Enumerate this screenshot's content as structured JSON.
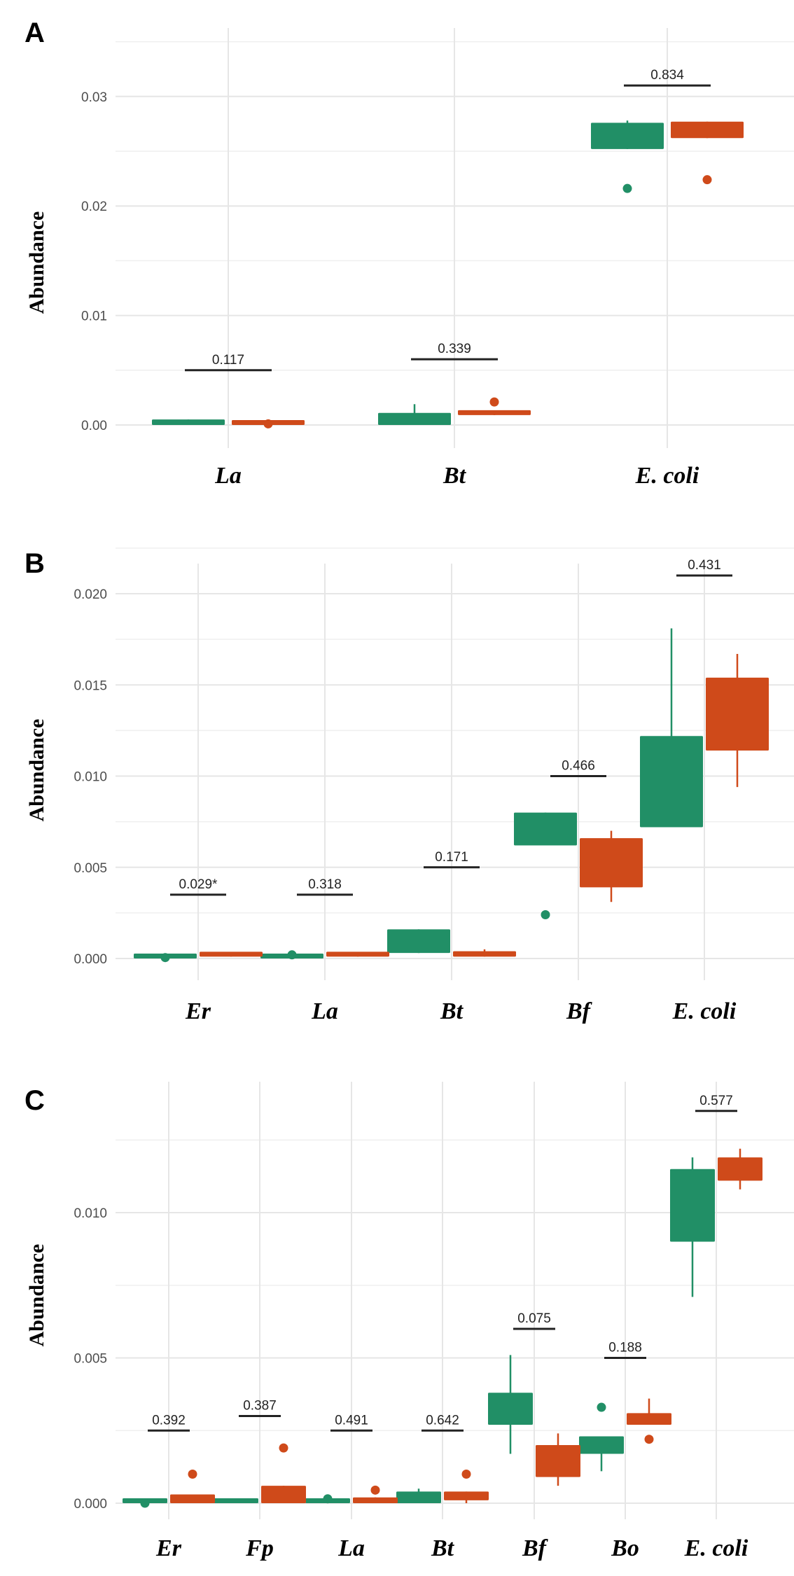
{
  "colors": {
    "group1": "#218f66",
    "group2": "#cf4a1a",
    "grid": "#e6e6e6",
    "bracket": "#222222"
  },
  "chart_data": [
    {
      "type": "box",
      "panel": "A",
      "ylabel": "Abundance",
      "ylim": [
        -0.002,
        0.035
      ],
      "yticks": [
        0.0,
        0.01,
        0.02,
        0.03
      ],
      "ytick_labels": [
        "0.00",
        "0.01",
        "0.02",
        "0.03"
      ],
      "minor_grid": [
        0.005,
        0.015,
        0.025,
        0.035
      ],
      "categories": [
        "La",
        "Bt",
        "E. coli"
      ],
      "series": [
        {
          "name": "group1",
          "boxes": [
            {
              "q1": 0.0,
              "q3": 0.0005,
              "lo": 0.0,
              "hi": 0.0005,
              "outliers": []
            },
            {
              "q1": 0.0,
              "q3": 0.0011,
              "lo": 0.0,
              "hi": 0.0019,
              "outliers": []
            },
            {
              "q1": 0.0252,
              "q3": 0.0276,
              "lo": 0.0252,
              "hi": 0.0278,
              "outliers": [
                0.0216
              ]
            }
          ]
        },
        {
          "name": "group2",
          "boxes": [
            {
              "q1": 0.0,
              "q3": 0.0002,
              "lo": 0.0,
              "hi": 0.0002,
              "outliers": [
                0.0001
              ]
            },
            {
              "q1": 0.0009,
              "q3": 0.0013,
              "lo": 0.0009,
              "hi": 0.0013,
              "outliers": [
                0.0021
              ]
            },
            {
              "q1": 0.0262,
              "q3": 0.0277,
              "lo": 0.0262,
              "hi": 0.0277,
              "outliers": [
                0.0224
              ]
            }
          ]
        }
      ],
      "pvalues": [
        {
          "label": "0.117",
          "y": 0.005
        },
        {
          "label": "0.339",
          "y": 0.006
        },
        {
          "label": "0.834",
          "y": 0.031
        }
      ]
    },
    {
      "type": "box",
      "panel": "B",
      "ylabel": "Abundance",
      "ylim": [
        -0.001,
        0.0235
      ],
      "yticks": [
        0.0,
        0.005,
        0.01,
        0.015,
        0.02
      ],
      "ytick_labels": [
        "0.000",
        "0.005",
        "0.010",
        "0.015",
        "0.020"
      ],
      "minor_grid": [
        0.0025,
        0.0075,
        0.0125,
        0.0175,
        0.0225
      ],
      "categories": [
        "Er",
        "La",
        "Bt",
        "Bf",
        "E. coli"
      ],
      "series": [
        {
          "name": "group1",
          "boxes": [
            {
              "q1": 0.0,
              "q3": 0.0001,
              "lo": 0.0,
              "hi": 0.0001,
              "outliers": [
                5e-05
              ]
            },
            {
              "q1": 0.0,
              "q3": 0.0001,
              "lo": 0.0,
              "hi": 0.0001,
              "outliers": [
                0.0002
              ]
            },
            {
              "q1": 0.0003,
              "q3": 0.0016,
              "lo": 0.0003,
              "hi": 0.0016,
              "outliers": []
            },
            {
              "q1": 0.0062,
              "q3": 0.008,
              "lo": 0.0062,
              "hi": 0.008,
              "outliers": [
                0.0024
              ]
            },
            {
              "q1": 0.0072,
              "q3": 0.0122,
              "lo": 0.0072,
              "hi": 0.0181,
              "outliers": []
            }
          ]
        },
        {
          "name": "group2",
          "boxes": [
            {
              "q1": 0.0001,
              "q3": 0.0003,
              "lo": 0.0001,
              "hi": 0.0003,
              "outliers": []
            },
            {
              "q1": 0.0001,
              "q3": 0.0002,
              "lo": 0.0001,
              "hi": 0.0002,
              "outliers": []
            },
            {
              "q1": 0.0001,
              "q3": 0.0004,
              "lo": 0.0001,
              "hi": 0.0005,
              "outliers": []
            },
            {
              "q1": 0.0039,
              "q3": 0.0066,
              "lo": 0.0031,
              "hi": 0.007,
              "outliers": []
            },
            {
              "q1": 0.0114,
              "q3": 0.0154,
              "lo": 0.0094,
              "hi": 0.0167,
              "outliers": []
            }
          ]
        }
      ],
      "pvalues": [
        {
          "label": "0.029*",
          "y": 0.0035
        },
        {
          "label": "0.318",
          "y": 0.0035
        },
        {
          "label": "0.171",
          "y": 0.005
        },
        {
          "label": "0.466",
          "y": 0.01
        },
        {
          "label": "0.431",
          "y": 0.021
        }
      ]
    },
    {
      "type": "box",
      "panel": "C",
      "ylabel": "Abundance",
      "ylim": [
        -0.0005,
        0.0145
      ],
      "yticks": [
        0.0,
        0.005,
        0.01
      ],
      "ytick_labels": [
        "0.000",
        "0.005",
        "0.010"
      ],
      "minor_grid": [
        0.0025,
        0.0075,
        0.0125
      ],
      "categories": [
        "Er",
        "Fp",
        "La",
        "Bt",
        "Bf",
        "Bo",
        "E. coli"
      ],
      "series": [
        {
          "name": "group1",
          "boxes": [
            {
              "q1": 0.0,
              "q3": 8e-05,
              "lo": 0.0,
              "hi": 8e-05,
              "outliers": [
                0.0
              ]
            },
            {
              "q1": 0.0,
              "q3": 6e-05,
              "lo": 0.0,
              "hi": 6e-05,
              "outliers": []
            },
            {
              "q1": 0.0,
              "q3": 0.0001,
              "lo": 0.0,
              "hi": 0.0001,
              "outliers": [
                0.00015
              ]
            },
            {
              "q1": 0.0,
              "q3": 0.0004,
              "lo": 0.0,
              "hi": 0.0005,
              "outliers": []
            },
            {
              "q1": 0.0027,
              "q3": 0.0038,
              "lo": 0.0017,
              "hi": 0.0051,
              "outliers": []
            },
            {
              "q1": 0.0017,
              "q3": 0.0023,
              "lo": 0.0011,
              "hi": 0.0023,
              "outliers": [
                0.0033
              ]
            },
            {
              "q1": 0.009,
              "q3": 0.0115,
              "lo": 0.0071,
              "hi": 0.0119,
              "outliers": []
            }
          ]
        },
        {
          "name": "group2",
          "boxes": [
            {
              "q1": 0.0,
              "q3": 0.0003,
              "lo": 0.0,
              "hi": 0.0003,
              "outliers": [
                0.001
              ]
            },
            {
              "q1": 0.0,
              "q3": 0.0006,
              "lo": 0.0,
              "hi": 0.0006,
              "outliers": [
                0.0019
              ]
            },
            {
              "q1": 0.0,
              "q3": 0.0002,
              "lo": 0.0,
              "hi": 0.0002,
              "outliers": [
                0.00045
              ]
            },
            {
              "q1": 0.0001,
              "q3": 0.0004,
              "lo": 0.0,
              "hi": 0.0004,
              "outliers": [
                0.001
              ]
            },
            {
              "q1": 0.0009,
              "q3": 0.002,
              "lo": 0.0006,
              "hi": 0.0024,
              "outliers": []
            },
            {
              "q1": 0.0027,
              "q3": 0.0031,
              "lo": 0.0027,
              "hi": 0.0036,
              "outliers": [
                0.0022
              ]
            },
            {
              "q1": 0.0111,
              "q3": 0.0119,
              "lo": 0.0108,
              "hi": 0.0122,
              "outliers": []
            }
          ]
        }
      ],
      "pvalues": [
        {
          "label": "0.392",
          "y": 0.0025
        },
        {
          "label": "0.387",
          "y": 0.003
        },
        {
          "label": "0.491",
          "y": 0.0025
        },
        {
          "label": "0.642",
          "y": 0.0025
        },
        {
          "label": "0.075",
          "y": 0.006
        },
        {
          "label": "0.188",
          "y": 0.005
        },
        {
          "label": "0.577",
          "y": 0.0135
        }
      ]
    }
  ]
}
